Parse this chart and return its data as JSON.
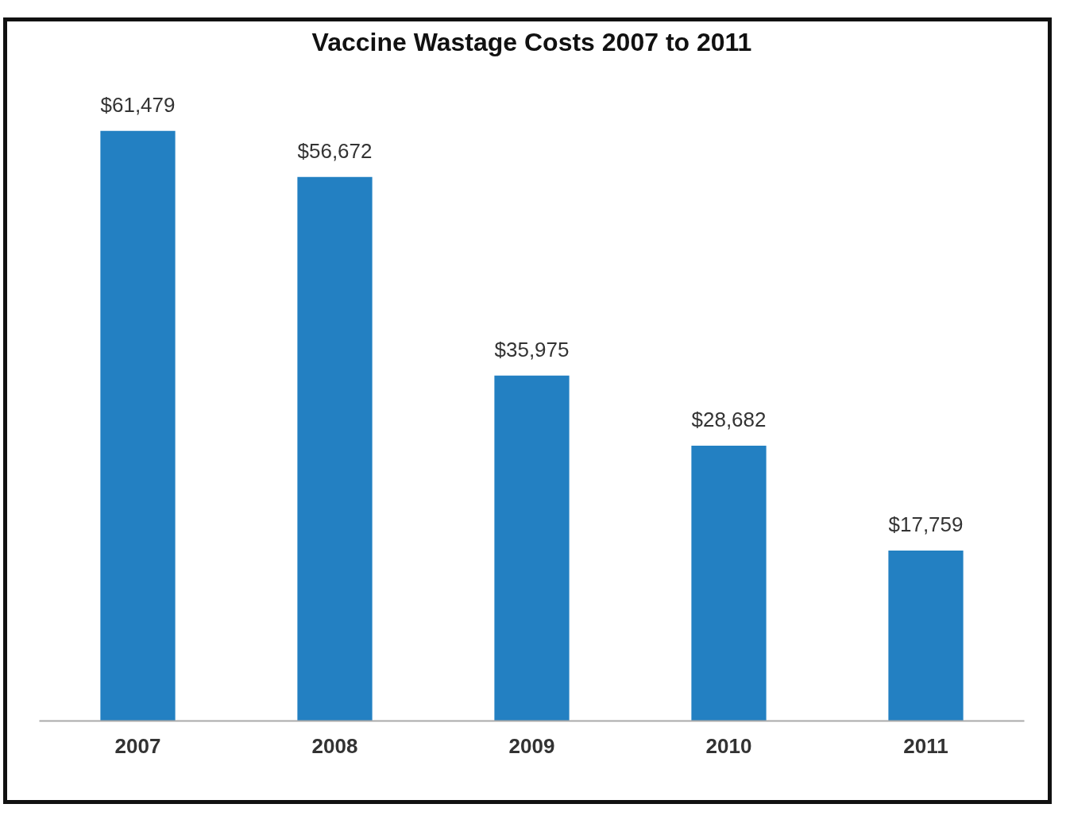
{
  "chart_data": {
    "type": "bar",
    "title": "Vaccine Wastage Costs 2007 to 2011",
    "categories": [
      "2007",
      "2008",
      "2009",
      "2010",
      "2011"
    ],
    "values": [
      61479,
      56672,
      35975,
      28682,
      17759
    ],
    "value_labels": [
      "$61,479",
      "$56,672",
      "$35,975",
      "$28,682",
      "$17,759"
    ],
    "color": "#2380c2"
  }
}
